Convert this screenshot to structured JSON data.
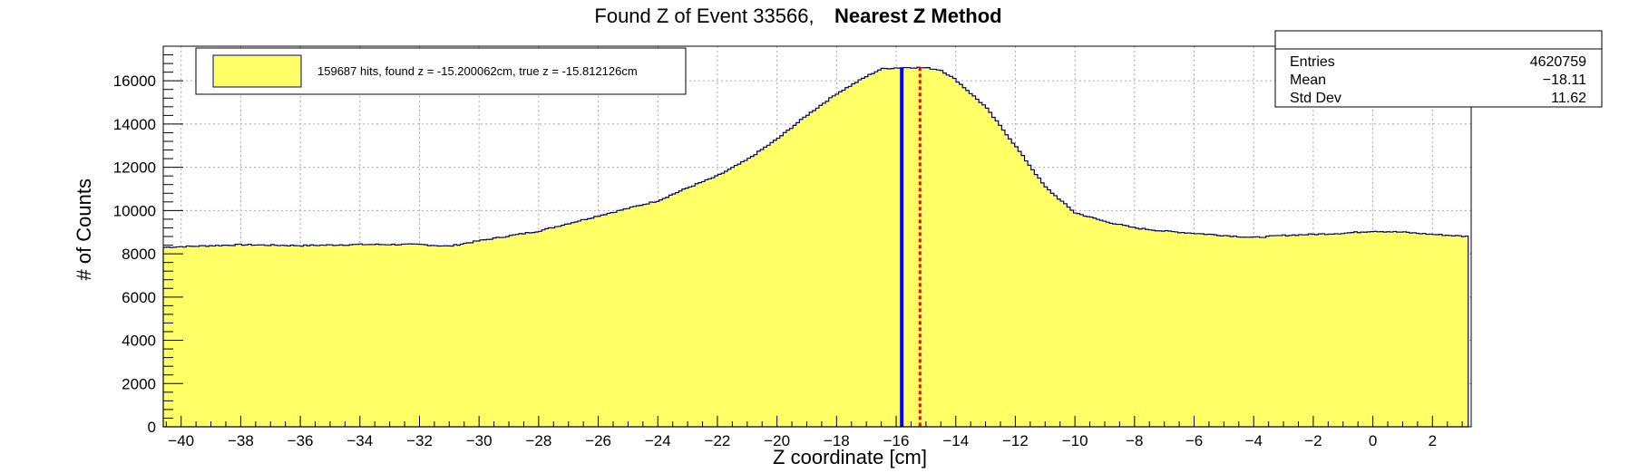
{
  "chart_data": {
    "type": "bar",
    "title": "Found Z of Event 33566,",
    "title_bold": "Nearest Z Method",
    "xlabel": "Z coordinate [cm]",
    "ylabel": "# of Counts",
    "xlim": [
      -40.6,
      3.3
    ],
    "ylim": [
      0,
      17600
    ],
    "x_ticks": [
      -40,
      -38,
      -36,
      -34,
      -32,
      -30,
      -28,
      -26,
      -24,
      -22,
      -20,
      -18,
      -16,
      -14,
      -12,
      -10,
      -8,
      -6,
      -4,
      -2,
      0,
      2
    ],
    "y_ticks": [
      0,
      2000,
      4000,
      6000,
      8000,
      10000,
      12000,
      14000,
      16000
    ],
    "grid": true,
    "fill_color": "#ffff66",
    "line_color": "#000080",
    "profile_x": [
      -40.6,
      -40.0,
      -38.0,
      -36.0,
      -34.0,
      -32.0,
      -31.0,
      -30.0,
      -28.0,
      -26.0,
      -24.0,
      -23.0,
      -22.0,
      -21.0,
      -20.0,
      -19.0,
      -18.0,
      -17.0,
      -16.5,
      -16.0,
      -15.5,
      -15.0,
      -14.5,
      -14.0,
      -13.0,
      -12.0,
      -11.0,
      -10.0,
      -9.0,
      -8.0,
      -7.0,
      -6.0,
      -5.0,
      -4.0,
      -3.0,
      -2.0,
      -1.0,
      0.0,
      1.0,
      2.0,
      3.2
    ],
    "profile_y": [
      8300,
      8330,
      8420,
      8380,
      8430,
      8430,
      8350,
      8600,
      9050,
      9750,
      10450,
      11050,
      11600,
      12350,
      13300,
      14400,
      15400,
      16200,
      16550,
      16600,
      16620,
      16600,
      16500,
      16050,
      14800,
      13000,
      11100,
      9900,
      9500,
      9200,
      9050,
      8950,
      8850,
      8750,
      8850,
      8900,
      8950,
      9050,
      9000,
      8900,
      8800
    ],
    "found_z": -15.200062,
    "true_z": -15.812126,
    "found_line_color": "#ff0000",
    "true_line_color": "#0000ff",
    "legend": {
      "text": "159687 hits, found z = -15.200062cm, true z = -15.812126cm",
      "placement": "top-left"
    },
    "stats": {
      "placement": "top-right",
      "rows": [
        {
          "label": "Entries",
          "value": "4620759"
        },
        {
          "label": "Mean",
          "value": "−18.11"
        },
        {
          "label": "Std Dev",
          "value": "11.62"
        }
      ]
    }
  }
}
